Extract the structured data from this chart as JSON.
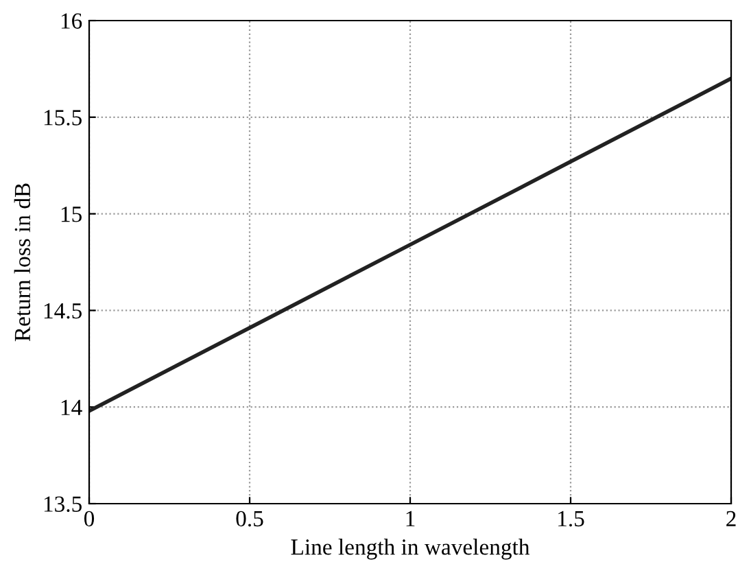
{
  "chart_data": {
    "type": "line",
    "xlabel": "Line length in wavelength",
    "ylabel": "Return loss in dB",
    "x": [
      0,
      0.5,
      1,
      1.5,
      2
    ],
    "series": [
      {
        "color": "#222222",
        "values": [
          13.98,
          14.41,
          14.84,
          15.27,
          15.7
        ]
      }
    ],
    "xlim": [
      0,
      2
    ],
    "ylim": [
      13.5,
      16
    ],
    "xticks": [
      0,
      0.5,
      1,
      1.5,
      2
    ],
    "yticks": [
      13.5,
      14,
      14.5,
      15,
      15.5,
      16
    ],
    "grid": true,
    "marker": "none",
    "line_style": "solid"
  }
}
